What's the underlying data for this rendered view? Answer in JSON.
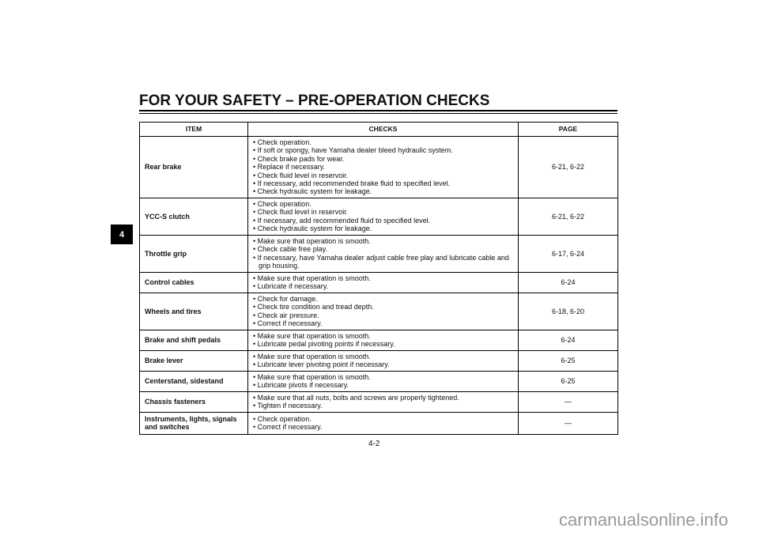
{
  "title": "FOR YOUR SAFETY – PRE-OPERATION CHECKS",
  "chapter_tab": "4",
  "table": {
    "headers": [
      "ITEM",
      "CHECKS",
      "PAGE"
    ],
    "rows": [
      {
        "item": "Rear brake",
        "checks": [
          "Check operation.",
          "If soft or spongy, have Yamaha dealer bleed hydraulic system.",
          "Check brake pads for wear.",
          "Replace if necessary.",
          "Check fluid level in reservoir.",
          "If necessary, add recommended brake fluid to specified level.",
          "Check hydraulic system for leakage."
        ],
        "page": "6-21, 6-22"
      },
      {
        "item": "YCC-S clutch",
        "checks": [
          "Check operation.",
          "Check fluid level in reservoir.",
          "If necessary, add recommended fluid to specified level.",
          "Check hydraulic system for leakage."
        ],
        "page": "6-21, 6-22"
      },
      {
        "item": "Throttle grip",
        "checks": [
          "Make sure that operation is smooth.",
          "Check cable free play.",
          "If necessary, have Yamaha dealer adjust cable free play and lubricate cable and grip housing."
        ],
        "page": "6-17, 6-24"
      },
      {
        "item": "Control cables",
        "checks": [
          "Make sure that operation is smooth.",
          "Lubricate if necessary."
        ],
        "page": "6-24"
      },
      {
        "item": "Wheels and tires",
        "checks": [
          "Check for damage.",
          "Check tire condition and tread depth.",
          "Check air pressure.",
          "Correct if necessary."
        ],
        "page": "6-18, 6-20"
      },
      {
        "item": "Brake and shift pedals",
        "checks": [
          "Make sure that operation is smooth.",
          "Lubricate pedal pivoting points if necessary."
        ],
        "page": "6-24"
      },
      {
        "item": "Brake lever",
        "checks": [
          "Make sure that operation is smooth.",
          "Lubricate lever pivoting point if necessary."
        ],
        "page": "6-25"
      },
      {
        "item": "Centerstand, sidestand",
        "checks": [
          "Make sure that operation is smooth.",
          "Lubricate pivots if necessary."
        ],
        "page": "6-25"
      },
      {
        "item": "Chassis fasteners",
        "checks": [
          "Make sure that all nuts, bolts and screws are properly tightened.",
          "Tighten if necessary."
        ],
        "page": "—"
      },
      {
        "item": "Instruments, lights, signals and switches",
        "checks": [
          "Check operation.",
          "Correct if necessary."
        ],
        "page": "—"
      }
    ]
  },
  "page_number": "4-2",
  "watermark": "carmanualsonline.info"
}
